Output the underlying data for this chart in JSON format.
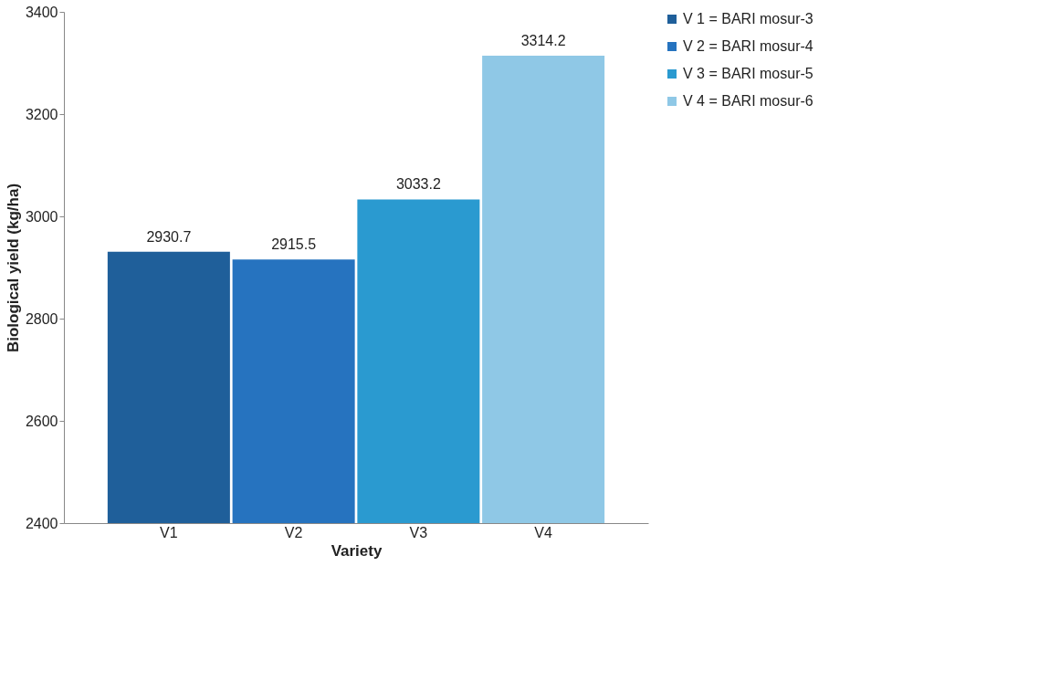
{
  "chart_data": {
    "type": "bar",
    "xlabel": "Variety",
    "ylabel": "Biological yield (kg/ha)",
    "categories": [
      "V1",
      "V2",
      "V3",
      "V4"
    ],
    "series": [
      {
        "name": "V 1 = BARI mosur-3",
        "color": "#1f5f9a",
        "values": [
          2930.7,
          null,
          null,
          null
        ]
      },
      {
        "name": "V 2 = BARI mosur-4",
        "color": "#2673bf",
        "values": [
          null,
          2915.5,
          null,
          null
        ]
      },
      {
        "name": "V 3 = BARI mosur-5",
        "color": "#2a9ad0",
        "values": [
          null,
          null,
          3033.2,
          null
        ]
      },
      {
        "name": "V 4 = BARI mosur-6",
        "color": "#8fc8e6",
        "values": [
          null,
          null,
          null,
          3314.2
        ]
      }
    ],
    "ylim": [
      2400,
      3400
    ],
    "yticks": [
      2400,
      2600,
      2800,
      3000,
      3200,
      3400
    ],
    "grid": false,
    "legend": "right",
    "data_labels": true
  }
}
